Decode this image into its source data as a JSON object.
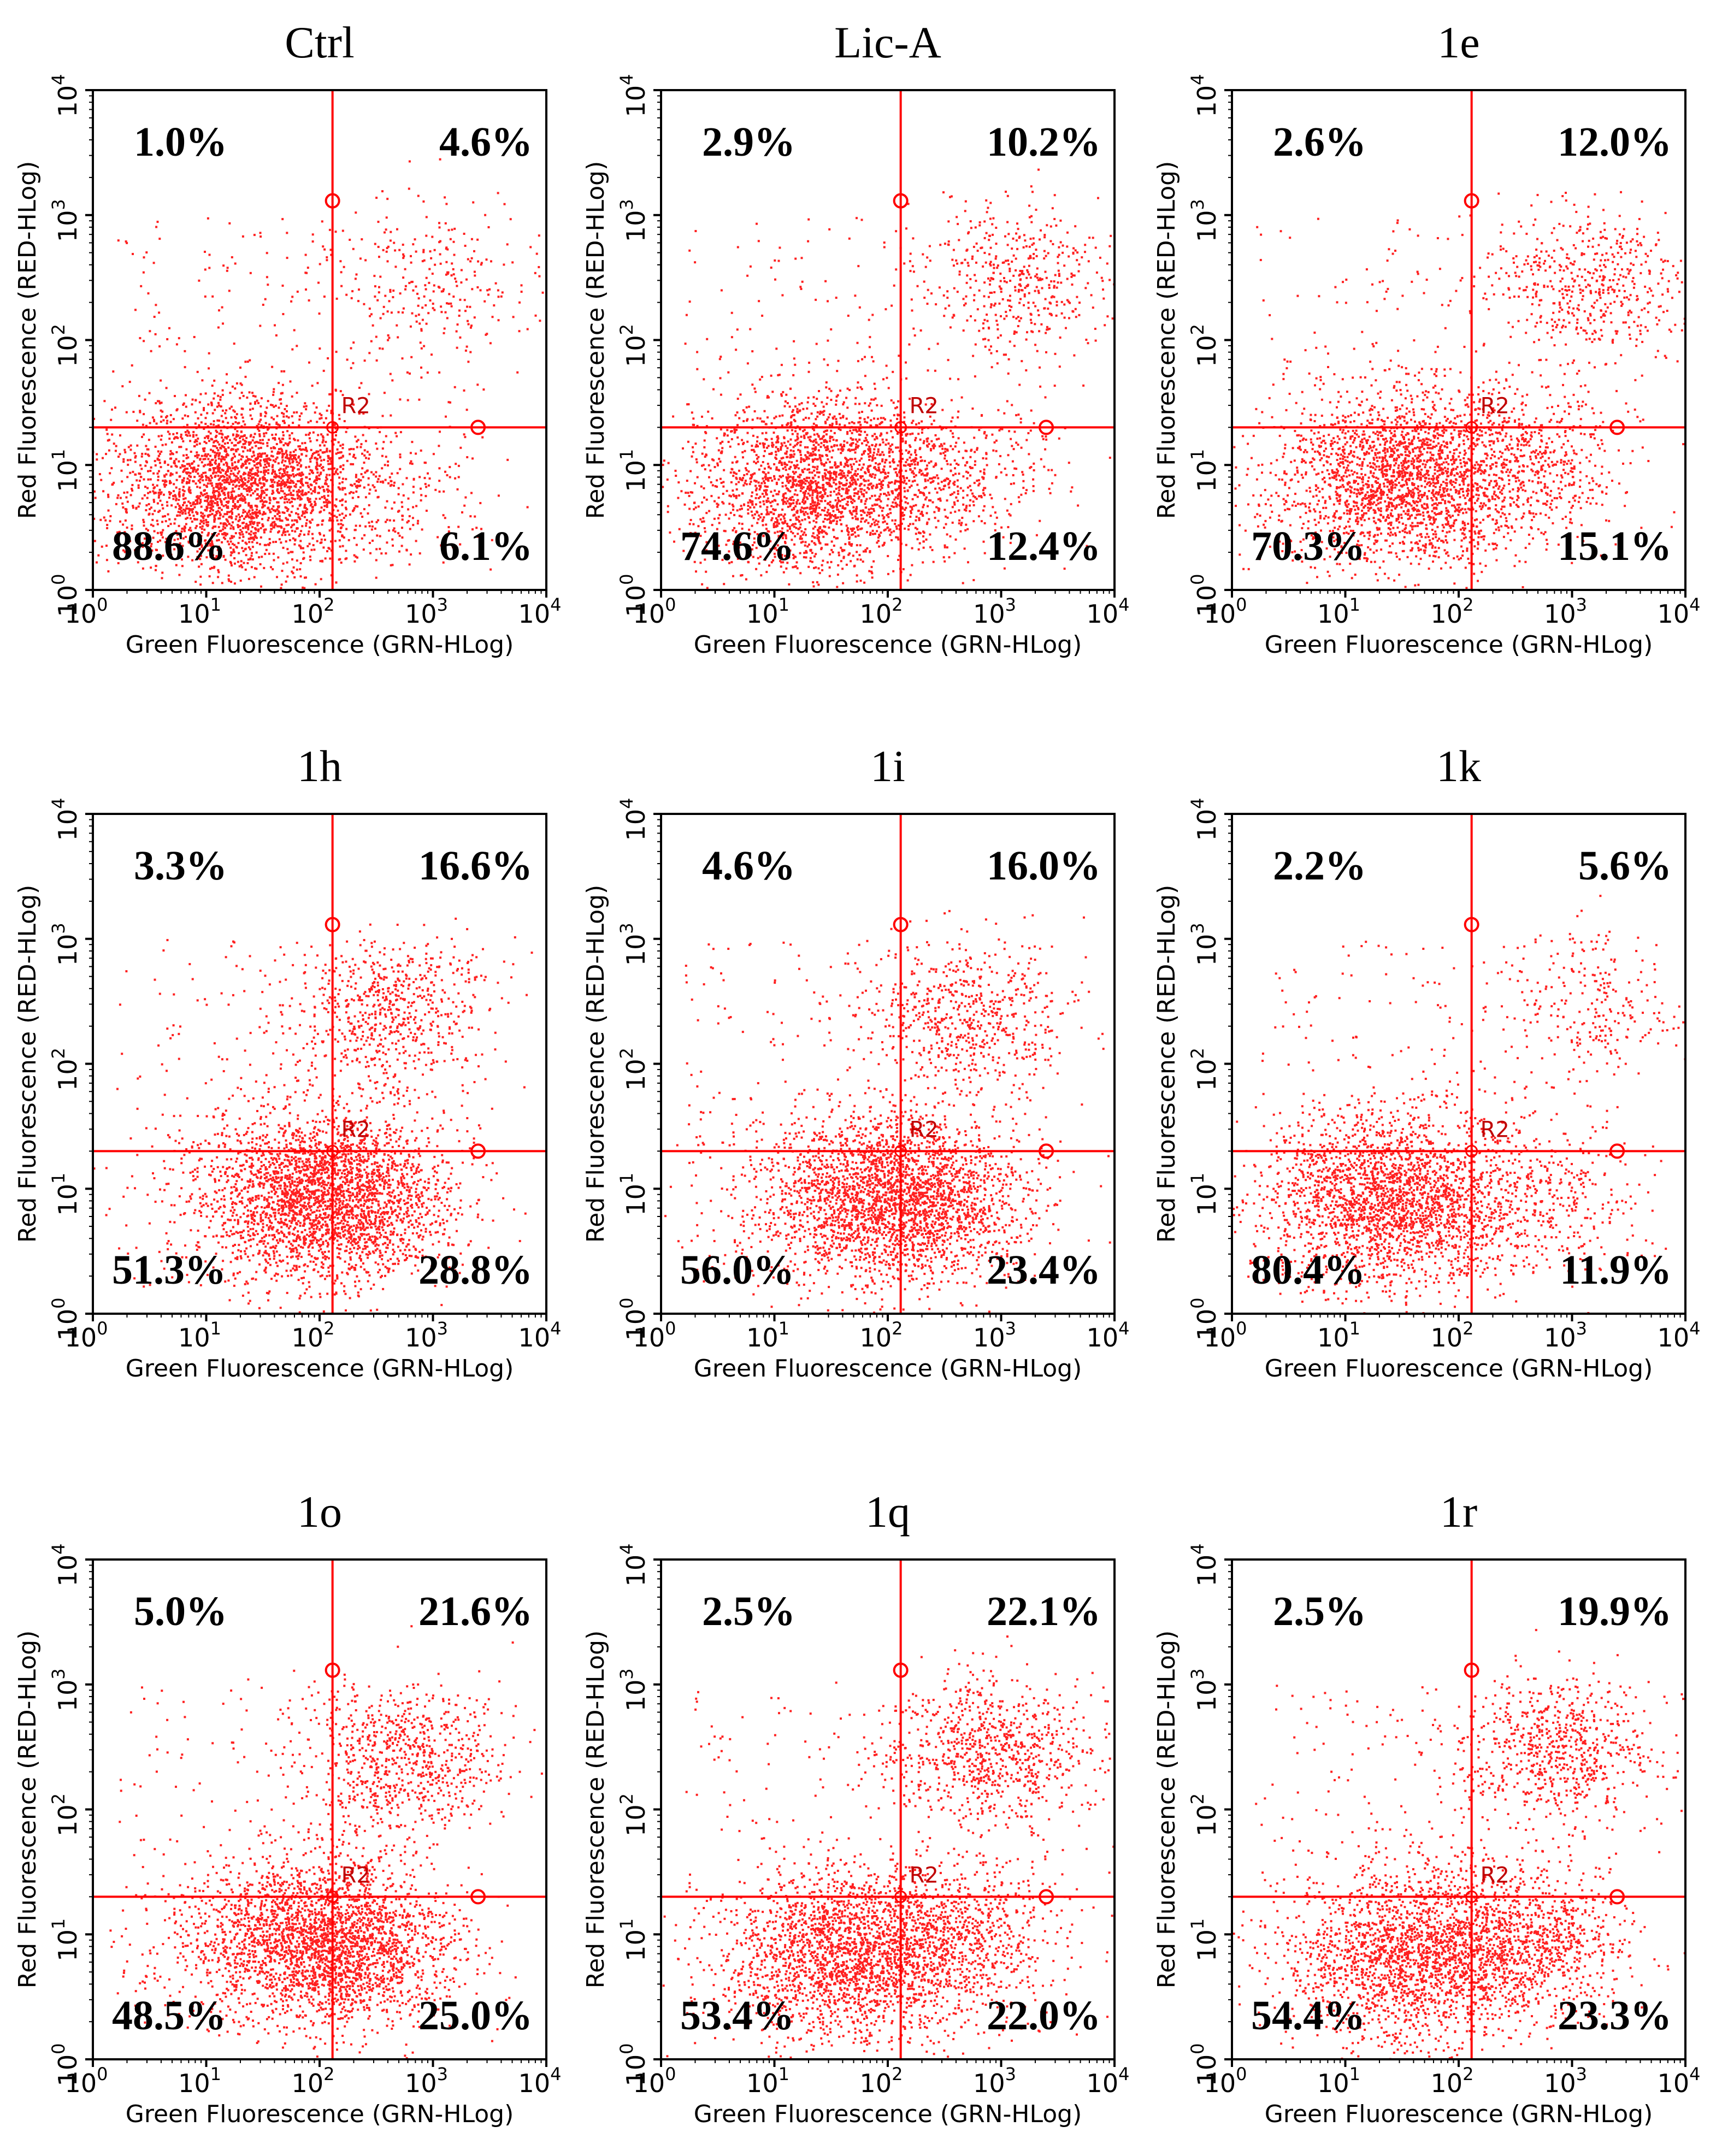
{
  "chart_data": [
    {
      "type": "scatter",
      "title": "Ctrl",
      "xlabel": "Green Fluorescence (GRN-HLog)",
      "ylabel": "Red Fluorescence (RED-HLog)",
      "x_scale": "log",
      "y_scale": "log",
      "xlim": [
        1,
        10000
      ],
      "ylim": [
        1,
        10000
      ],
      "gate": {
        "x": 130,
        "y": 20,
        "region": "R2"
      },
      "quadrants": {
        "upper_left": "1.0%",
        "upper_right": "4.6%",
        "lower_left": "88.6%",
        "lower_right": "6.1%"
      },
      "populations": [
        {
          "x": 20,
          "y": 7,
          "count": 2600
        },
        {
          "x": 1000,
          "y": 300,
          "count": 250
        },
        {
          "x": 300,
          "y": 6,
          "count": 250
        }
      ],
      "grid": false
    },
    {
      "type": "scatter",
      "title": "Lic-A",
      "xlabel": "Green Fluorescence (GRN-HLog)",
      "ylabel": "Red Fluorescence (RED-HLog)",
      "x_scale": "log",
      "y_scale": "log",
      "xlim": [
        1,
        10000
      ],
      "ylim": [
        1,
        10000
      ],
      "gate": {
        "x": 130,
        "y": 20,
        "region": "R2"
      },
      "quadrants": {
        "upper_left": "2.9%",
        "upper_right": "10.2%",
        "lower_left": "74.6%",
        "lower_right": "12.4%"
      },
      "populations": [
        {
          "x": 25,
          "y": 7,
          "count": 2200
        },
        {
          "x": 1500,
          "y": 300,
          "count": 450
        },
        {
          "x": 300,
          "y": 8,
          "count": 400
        }
      ],
      "grid": false
    },
    {
      "type": "scatter",
      "title": "1e",
      "xlabel": "Green Fluorescence (GRN-HLog)",
      "ylabel": "Red Fluorescence (RED-HLog)",
      "x_scale": "log",
      "y_scale": "log",
      "xlim": [
        1,
        10000
      ],
      "ylim": [
        1,
        10000
      ],
      "gate": {
        "x": 130,
        "y": 20,
        "region": "R2"
      },
      "quadrants": {
        "upper_left": "2.6%",
        "upper_right": "12.0%",
        "lower_left": "70.3%",
        "lower_right": "15.1%"
      },
      "populations": [
        {
          "x": 30,
          "y": 8,
          "count": 2200
        },
        {
          "x": 1500,
          "y": 300,
          "count": 500
        },
        {
          "x": 400,
          "y": 10,
          "count": 500
        }
      ],
      "grid": false
    },
    {
      "type": "scatter",
      "title": "1h",
      "xlabel": "Green Fluorescence (GRN-HLog)",
      "ylabel": "Red Fluorescence (RED-HLog)",
      "x_scale": "log",
      "y_scale": "log",
      "xlim": [
        1,
        10000
      ],
      "ylim": [
        1,
        10000
      ],
      "gate": {
        "x": 130,
        "y": 20,
        "region": "R2"
      },
      "quadrants": {
        "upper_left": "3.3%",
        "upper_right": "16.6%",
        "lower_left": "51.3%",
        "lower_right": "28.8%"
      },
      "populations": [
        {
          "x": 80,
          "y": 9,
          "count": 2000
        },
        {
          "x": 400,
          "y": 250,
          "count": 650
        },
        {
          "x": 200,
          "y": 8,
          "count": 900
        }
      ],
      "grid": false
    },
    {
      "type": "scatter",
      "title": "1i",
      "xlabel": "Green Fluorescence (GRN-HLog)",
      "ylabel": "Red Fluorescence (RED-HLog)",
      "x_scale": "log",
      "y_scale": "log",
      "xlim": [
        1,
        10000
      ],
      "ylim": [
        1,
        10000
      ],
      "gate": {
        "x": 130,
        "y": 20,
        "region": "R2"
      },
      "quadrants": {
        "upper_left": "4.6%",
        "upper_right": "16.0%",
        "lower_left": "56.0%",
        "lower_right": "23.4%"
      },
      "populations": [
        {
          "x": 70,
          "y": 9,
          "count": 2000
        },
        {
          "x": 500,
          "y": 250,
          "count": 600
        },
        {
          "x": 250,
          "y": 8,
          "count": 800
        }
      ],
      "grid": false
    },
    {
      "type": "scatter",
      "title": "1k",
      "xlabel": "Green Fluorescence (GRN-HLog)",
      "ylabel": "Red Fluorescence (RED-HLog)",
      "x_scale": "log",
      "y_scale": "log",
      "xlim": [
        1,
        10000
      ],
      "ylim": [
        1,
        10000
      ],
      "gate": {
        "x": 130,
        "y": 20,
        "region": "R2"
      },
      "quadrants": {
        "upper_left": "2.2%",
        "upper_right": "5.6%",
        "lower_left": "80.4%",
        "lower_right": "11.9%"
      },
      "populations": [
        {
          "x": 25,
          "y": 8,
          "count": 2300
        },
        {
          "x": 1500,
          "y": 300,
          "count": 250
        },
        {
          "x": 400,
          "y": 9,
          "count": 400
        }
      ],
      "grid": false
    },
    {
      "type": "scatter",
      "title": "1o",
      "xlabel": "Green Fluorescence (GRN-HLog)",
      "ylabel": "Red Fluorescence (RED-HLog)",
      "x_scale": "log",
      "y_scale": "log",
      "xlim": [
        1,
        10000
      ],
      "ylim": [
        1,
        10000
      ],
      "gate": {
        "x": 130,
        "y": 20,
        "region": "R2"
      },
      "quadrants": {
        "upper_left": "5.0%",
        "upper_right": "21.6%",
        "lower_left": "48.5%",
        "lower_right": "25.0%"
      },
      "populations": [
        {
          "x": 70,
          "y": 9,
          "count": 2000
        },
        {
          "x": 500,
          "y": 250,
          "count": 750
        },
        {
          "x": 200,
          "y": 8,
          "count": 800
        }
      ],
      "grid": false
    },
    {
      "type": "scatter",
      "title": "1q",
      "xlabel": "Green Fluorescence (GRN-HLog)",
      "ylabel": "Red Fluorescence (RED-HLog)",
      "x_scale": "log",
      "y_scale": "log",
      "xlim": [
        1,
        10000
      ],
      "ylim": [
        1,
        10000
      ],
      "gate": {
        "x": 130,
        "y": 20,
        "region": "R2"
      },
      "quadrants": {
        "upper_left": "2.5%",
        "upper_right": "22.1%",
        "lower_left": "53.4%",
        "lower_right": "22.0%"
      },
      "populations": [
        {
          "x": 40,
          "y": 7,
          "count": 2000
        },
        {
          "x": 800,
          "y": 300,
          "count": 800
        },
        {
          "x": 350,
          "y": 9,
          "count": 800
        }
      ],
      "grid": false
    },
    {
      "type": "scatter",
      "title": "1r",
      "xlabel": "Green Fluorescence (GRN-HLog)",
      "ylabel": "Red Fluorescence (RED-HLog)",
      "x_scale": "log",
      "y_scale": "log",
      "xlim": [
        1,
        10000
      ],
      "ylim": [
        1,
        10000
      ],
      "gate": {
        "x": 130,
        "y": 20,
        "region": "R2"
      },
      "quadrants": {
        "upper_left": "2.5%",
        "upper_right": "19.9%",
        "lower_left": "54.4%",
        "lower_right": "23.3%"
      },
      "populations": [
        {
          "x": 40,
          "y": 7,
          "count": 2000
        },
        {
          "x": 800,
          "y": 300,
          "count": 700
        },
        {
          "x": 350,
          "y": 9,
          "count": 850
        }
      ],
      "grid": false
    }
  ],
  "colors": {
    "dots": "#ff2020",
    "gate": "#ff0000",
    "axis": "#000000"
  }
}
